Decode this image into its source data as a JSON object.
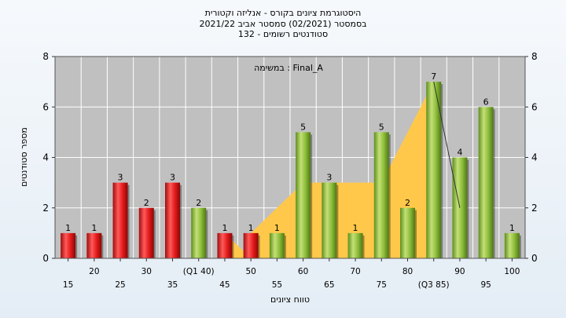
{
  "header": {
    "line1": "היסטוגרמת ציונים בקורס - אנליזה וקטורית",
    "line2": "בסמסטר  (02/2021)  סמסטר אביב 2021/22",
    "line3": "סטודנטים רשומים - 132"
  },
  "colors": {
    "fail_bar": "#e02020",
    "pass_bar": "#8cbf3a",
    "student_area": "#ffc84a",
    "plot_bg": "#c0c0c0",
    "grid": "#ffffff"
  },
  "chart_data": {
    "type": "bar",
    "title": "",
    "xlabel": "טווח ציונים",
    "ylabel": "מספר סטודנטים",
    "ylim": [
      0,
      8
    ],
    "yticks": [
      0,
      2,
      4,
      6,
      8
    ],
    "annotation": "במשימה : Final_A",
    "categories": [
      "15",
      "20",
      "25",
      "30",
      "35",
      "(Q1 40)",
      "45",
      "50",
      "55",
      "60",
      "65",
      "70",
      "75",
      "80",
      "(Q3 85)",
      "90",
      "95",
      "100"
    ],
    "values": [
      1,
      1,
      3,
      2,
      3,
      2,
      1,
      1,
      1,
      5,
      3,
      1,
      5,
      2,
      7,
      4,
      6,
      1
    ],
    "pass_threshold": 55,
    "student_marker": {
      "area_points": [
        [
          6,
          0
        ],
        [
          6,
          1
        ],
        [
          7,
          0
        ],
        [
          7,
          1
        ],
        [
          9,
          3
        ],
        [
          12,
          3
        ],
        [
          14,
          7
        ],
        [
          14,
          0
        ]
      ],
      "line_points": [
        [
          14,
          7
        ],
        [
          15,
          2
        ]
      ]
    },
    "grid": true
  }
}
